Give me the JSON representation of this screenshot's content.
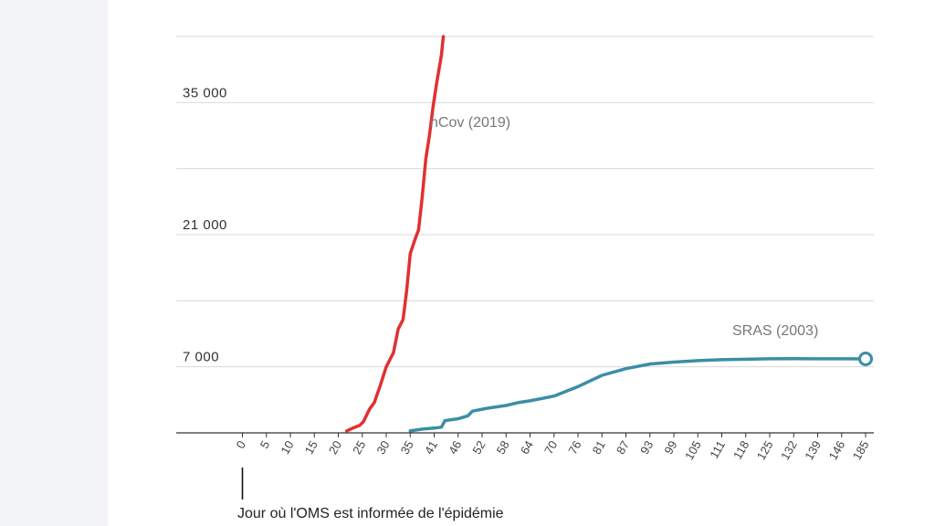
{
  "colors": {
    "ncov": "#e03131",
    "sras": "#3b8ea5",
    "grid": "#d9d9d9",
    "axis": "#333333",
    "sidebar": "#f3f4f6"
  },
  "chart_data": {
    "type": "line",
    "title": "",
    "xlabel": "",
    "ylabel": "",
    "ylim": [
      0,
      42000
    ],
    "y_ticks": [
      7000,
      21000,
      35000
    ],
    "y_tick_labels": [
      "7 000",
      "21 000",
      "35 000"
    ],
    "y_grid": [
      7000,
      14000,
      21000,
      28000,
      35000,
      42000
    ],
    "grid": true,
    "x_tick_labels": [
      "0",
      "5",
      "10",
      "15",
      "20",
      "25",
      "30",
      "35",
      "41",
      "46",
      "52",
      "58",
      "64",
      "70",
      "76",
      "81",
      "87",
      "93",
      "99",
      "105",
      "111",
      "118",
      "125",
      "132",
      "139",
      "146",
      "185"
    ],
    "annotation": "Jour où l'OMS est informée de l'épidémie",
    "series": [
      {
        "name": "nCov (2019)",
        "x_unit": "tick_index",
        "points": [
          [
            4.35,
            200
          ],
          [
            4.6,
            500
          ],
          [
            4.9,
            800
          ],
          [
            5.05,
            1200
          ],
          [
            5.3,
            2500
          ],
          [
            5.5,
            3200
          ],
          [
            5.75,
            5000
          ],
          [
            6.0,
            7000
          ],
          [
            6.2,
            8000
          ],
          [
            6.3,
            8500
          ],
          [
            6.5,
            11000
          ],
          [
            6.7,
            12000
          ],
          [
            6.85,
            15000
          ],
          [
            7.0,
            19000
          ],
          [
            7.2,
            20500
          ],
          [
            7.35,
            21500
          ],
          [
            7.5,
            25000
          ],
          [
            7.65,
            29000
          ],
          [
            7.8,
            31500
          ],
          [
            7.95,
            34500
          ],
          [
            8.1,
            37000
          ],
          [
            8.3,
            40000
          ],
          [
            8.38,
            42000
          ]
        ]
      },
      {
        "name": "SRAS (2003)",
        "x_unit": "tick_index",
        "points": [
          [
            7.0,
            200
          ],
          [
            7.5,
            400
          ],
          [
            8.0,
            500
          ],
          [
            8.3,
            600
          ],
          [
            8.45,
            1300
          ],
          [
            9.0,
            1500
          ],
          [
            9.4,
            1800
          ],
          [
            9.6,
            2300
          ],
          [
            10.2,
            2600
          ],
          [
            11.0,
            2900
          ],
          [
            11.5,
            3200
          ],
          [
            12.0,
            3400
          ],
          [
            12.6,
            3700
          ],
          [
            13.0,
            3900
          ],
          [
            13.5,
            4400
          ],
          [
            14.0,
            4900
          ],
          [
            14.5,
            5500
          ],
          [
            15.0,
            6100
          ],
          [
            16.0,
            6800
          ],
          [
            17.0,
            7300
          ],
          [
            18.0,
            7500
          ],
          [
            19.0,
            7650
          ],
          [
            20.0,
            7750
          ],
          [
            21.0,
            7800
          ],
          [
            22.0,
            7850
          ],
          [
            23.0,
            7860
          ],
          [
            24.0,
            7850
          ],
          [
            25.0,
            7850
          ],
          [
            26.0,
            7840
          ]
        ]
      }
    ]
  }
}
